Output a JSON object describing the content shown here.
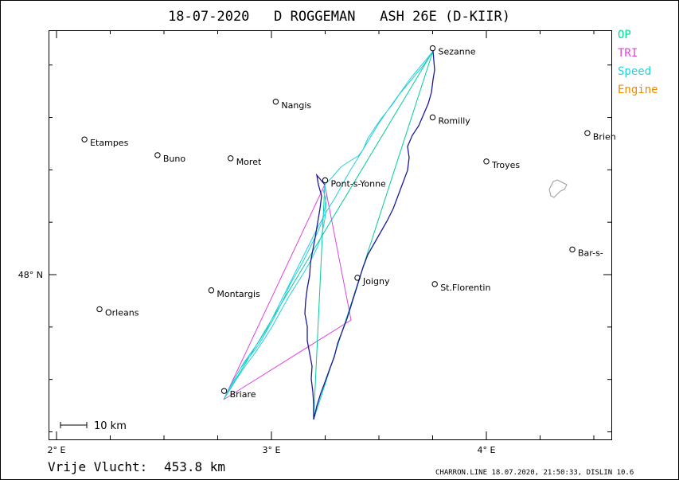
{
  "title": "18-07-2020   D ROGGEMAN   ASH 26E (D-KIIR)",
  "legend": [
    {
      "label": "OP",
      "color": "#00dd99"
    },
    {
      "label": "TRI",
      "color": "#dd44dd"
    },
    {
      "label": "Speed",
      "color": "#22d3e0"
    },
    {
      "label": "Engine",
      "color": "#ee8800"
    }
  ],
  "axes": {
    "x_ticks": [
      {
        "label": "2° E",
        "lon": 2
      },
      {
        "label": "3° E",
        "lon": 3
      },
      {
        "label": "4° E",
        "lon": 4
      }
    ],
    "y_ticks": [
      {
        "label": "48° N",
        "lat": 48
      }
    ]
  },
  "towns": [
    {
      "name": "Sezanne",
      "lon": 3.75,
      "lat": 48.72
    },
    {
      "name": "Nangis",
      "lon": 3.02,
      "lat": 48.55
    },
    {
      "name": "Romilly",
      "lon": 3.75,
      "lat": 48.5
    },
    {
      "name": "Etampes",
      "lon": 2.13,
      "lat": 48.43
    },
    {
      "name": "Buno",
      "lon": 2.47,
      "lat": 48.38
    },
    {
      "name": "Moret",
      "lon": 2.81,
      "lat": 48.37
    },
    {
      "name": "Brien",
      "lon": 4.47,
      "lat": 48.45
    },
    {
      "name": "Troyes",
      "lon": 4.0,
      "lat": 48.36
    },
    {
      "name": "Pont-s-Yonne",
      "lon": 3.25,
      "lat": 48.3
    },
    {
      "name": "Bar-s-",
      "lon": 4.4,
      "lat": 48.08
    },
    {
      "name": "Joigny",
      "lon": 3.4,
      "lat": 47.99
    },
    {
      "name": "St.Florentin",
      "lon": 3.76,
      "lat": 47.97
    },
    {
      "name": "Montargis",
      "lon": 2.72,
      "lat": 47.95
    },
    {
      "name": "Orleans",
      "lon": 2.2,
      "lat": 47.89
    },
    {
      "name": "Briare",
      "lon": 2.78,
      "lat": 47.63
    }
  ],
  "scale_label": "10 km",
  "footer": {
    "distance_label": "Vrije Vlucht:",
    "distance_value": "453.8 km",
    "credit": "CHARRON.LINE 18.07.2020, 21:50:33, DISLIN 10.6"
  }
}
